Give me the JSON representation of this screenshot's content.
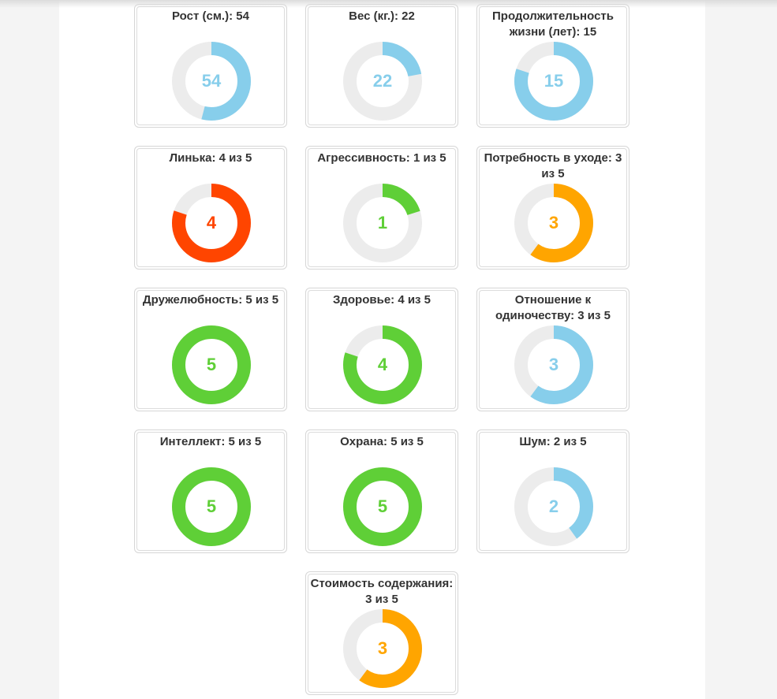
{
  "cards": [
    {
      "id": "height",
      "title": "Рост (см.): 54",
      "value": "54",
      "fraction": 0.54,
      "color": "#87ceeb"
    },
    {
      "id": "weight",
      "title": "Вес (кг.): 22",
      "value": "22",
      "fraction": 0.22,
      "color": "#87ceeb"
    },
    {
      "id": "lifespan",
      "title": "Продолжительность жизни (лет): 15",
      "value": "15",
      "fraction": 0.8,
      "color": "#87ceeb"
    },
    {
      "id": "shedding",
      "title": "Линька: 4 из 5",
      "value": "4",
      "fraction": 0.8,
      "color": "#ff4500"
    },
    {
      "id": "aggression",
      "title": "Агрессивность: 1 из 5",
      "value": "1",
      "fraction": 0.2,
      "color": "#5fcf37"
    },
    {
      "id": "grooming",
      "title": "Потребность в уходе: 3 из 5",
      "value": "3",
      "fraction": 0.6,
      "color": "#ffa500"
    },
    {
      "id": "friendliness",
      "title": "Дружелюбность: 5 из 5",
      "value": "5",
      "fraction": 1.0,
      "color": "#5fcf37"
    },
    {
      "id": "health",
      "title": "Здоровье: 4 из 5",
      "value": "4",
      "fraction": 0.8,
      "color": "#5fcf37"
    },
    {
      "id": "solitude",
      "title": "Отношение к одиночеству: 3 из 5",
      "value": "3",
      "fraction": 0.6,
      "color": "#87ceeb"
    },
    {
      "id": "intellect",
      "title": "Интеллект: 5 из 5",
      "value": "5",
      "fraction": 1.0,
      "color": "#5fcf37"
    },
    {
      "id": "guard",
      "title": "Охрана: 5 из 5",
      "value": "5",
      "fraction": 1.0,
      "color": "#5fcf37"
    },
    {
      "id": "noise",
      "title": "Шум: 2 из 5",
      "value": "2",
      "fraction": 0.4,
      "color": "#87ceeb"
    },
    {
      "id": "cost",
      "title": "Стоимость содержания: 3 из 5",
      "value": "3",
      "fraction": 0.6,
      "color": "#ffa500"
    }
  ],
  "track_color": "#ececec"
}
